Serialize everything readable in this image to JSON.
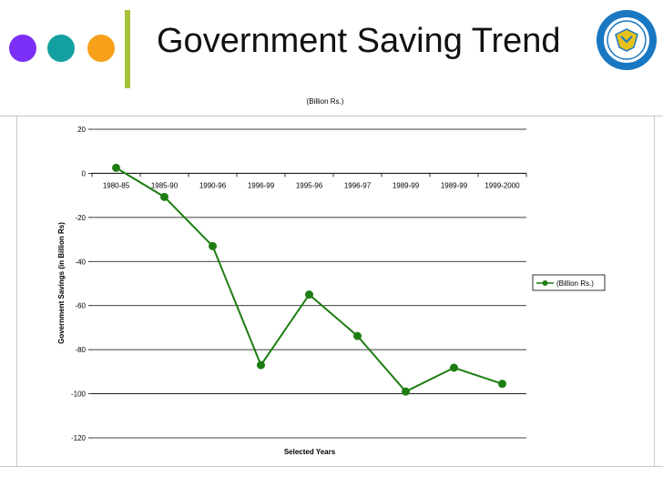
{
  "slide": {
    "title": "Government Saving Trend",
    "decor_colors": [
      "#7b2ff7",
      "#14a0a0",
      "#f7a11a"
    ],
    "accent_bar_color": "#a6c23a",
    "logo_icon": "university-seal-logo",
    "logo_colors": [
      "#1a78c2",
      "#e8c21a"
    ]
  },
  "chart_data": {
    "type": "line",
    "title": "(Billion Rs.)",
    "xlabel": "Selected Years",
    "ylabel": "Government Savings (in Billion Rs)",
    "categories": [
      "1980-85",
      "1985-90",
      "1990-96",
      "1996-99",
      "1995-96",
      "1996-97",
      "1989-99",
      "1989-99",
      "1999-2000"
    ],
    "series": [
      {
        "name": "(Billion Rs.)",
        "color": "#1e7d12",
        "values": [
          2.5,
          -10.7,
          -33,
          -87,
          -55,
          -73.8,
          -99,
          -88.2,
          -95.5
        ]
      }
    ],
    "ylim": [
      -120,
      20
    ],
    "yticks": [
      20,
      0,
      -20,
      -40,
      -60,
      -80,
      -100,
      -120
    ],
    "grid": true,
    "legend_position": "right"
  }
}
